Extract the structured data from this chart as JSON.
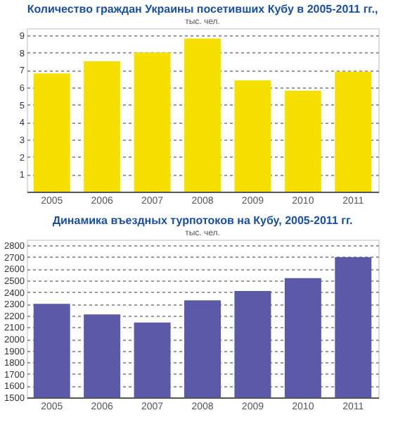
{
  "chart_data": [
    {
      "type": "bar",
      "title": "Количество граждан Украины посетивших Кубу в 2005-2011 гг.,",
      "subtitle": "тыс. чел.",
      "categories": [
        "2005",
        "2006",
        "2007",
        "2008",
        "2009",
        "2010",
        "2011"
      ],
      "values": [
        6.8,
        7.5,
        8.0,
        8.8,
        6.4,
        5.8,
        6.9
      ],
      "color": "#f5e000",
      "ylim": [
        0,
        9.4
      ],
      "yticks": [
        1,
        2,
        3,
        4,
        5,
        6,
        7,
        8,
        9
      ],
      "grid": "y"
    },
    {
      "type": "bar",
      "title": "Динамика въездных турпотоков на Кубу, 2005-2011 гг.",
      "subtitle": "тыс. чел.",
      "categories": [
        "2005",
        "2006",
        "2007",
        "2008",
        "2009",
        "2010",
        "2011"
      ],
      "values": [
        2300,
        2210,
        2140,
        2330,
        2410,
        2520,
        2700
      ],
      "color": "#5a5aa8",
      "ylim": [
        1500,
        2850
      ],
      "yticks": [
        1500,
        1600,
        1700,
        1800,
        1900,
        2000,
        2100,
        2200,
        2300,
        2400,
        2500,
        2600,
        2700,
        2800
      ],
      "grid": "y"
    }
  ]
}
